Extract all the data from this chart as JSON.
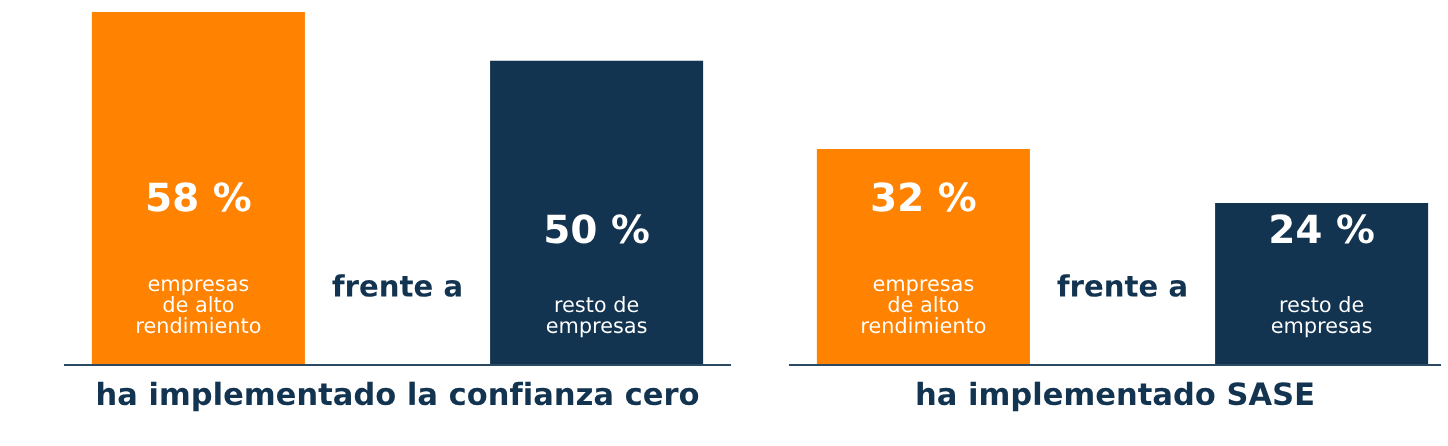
{
  "chart_data": [
    {
      "type": "bar",
      "xlabel": "ha implementado la confianza cero",
      "categories": [
        "empresas\nde alto\nrendimiento",
        "resto de\nempresas"
      ],
      "values": [
        58,
        50
      ],
      "colors": [
        "#ff8200",
        "#133450"
      ],
      "value_labels": [
        "58 %",
        "50 %"
      ],
      "annotations": [
        "frente a"
      ]
    },
    {
      "type": "bar",
      "xlabel": "ha implementado SASE",
      "categories": [
        "empresas\nde alto\nrendimiento",
        "resto de\nempresas"
      ],
      "values": [
        32,
        24
      ],
      "colors": [
        "#ff8200",
        "#133450"
      ],
      "value_labels": [
        "32 %",
        "24 %"
      ],
      "annotations": [
        "frente a"
      ]
    }
  ]
}
